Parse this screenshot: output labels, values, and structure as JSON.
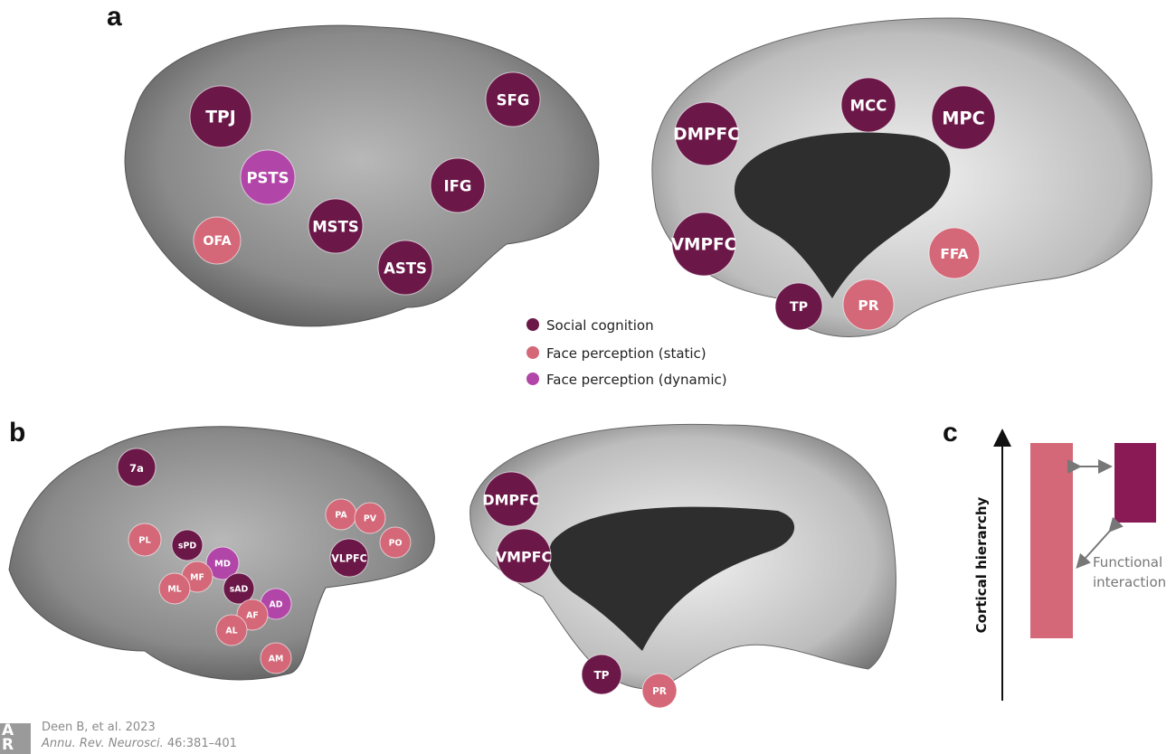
{
  "colors": {
    "social": "#6b1848",
    "static": "#d46878",
    "dynamic": "#b246a8",
    "brain": "#8c8c8c",
    "medial_wall": "#2e2e2e"
  },
  "panels": {
    "a": "a",
    "b": "b",
    "c": "c"
  },
  "legend": [
    {
      "label": "Social cognition",
      "category": "social"
    },
    {
      "label": "Face perception (static)",
      "category": "static"
    },
    {
      "label": "Face perception (dynamic)",
      "category": "dynamic"
    }
  ],
  "regions": {
    "a_lateral": [
      {
        "label": "TPJ",
        "category": "social"
      },
      {
        "label": "PSTS",
        "category": "dynamic"
      },
      {
        "label": "OFA",
        "category": "static"
      },
      {
        "label": "MSTS",
        "category": "social"
      },
      {
        "label": "ASTS",
        "category": "social"
      },
      {
        "label": "IFG",
        "category": "social"
      },
      {
        "label": "SFG",
        "category": "social"
      }
    ],
    "a_medial": [
      {
        "label": "DMPFC",
        "category": "social"
      },
      {
        "label": "MCC",
        "category": "social"
      },
      {
        "label": "MPC",
        "category": "social"
      },
      {
        "label": "VMPFC",
        "category": "social"
      },
      {
        "label": "FFA",
        "category": "static"
      },
      {
        "label": "TP",
        "category": "social"
      },
      {
        "label": "PR",
        "category": "static"
      }
    ],
    "b_lateral": [
      {
        "label": "7a",
        "category": "social"
      },
      {
        "label": "PL",
        "category": "static"
      },
      {
        "label": "sPD",
        "category": "social"
      },
      {
        "label": "MD",
        "category": "dynamic"
      },
      {
        "label": "MF",
        "category": "static"
      },
      {
        "label": "ML",
        "category": "static"
      },
      {
        "label": "sAD",
        "category": "social"
      },
      {
        "label": "AD",
        "category": "dynamic"
      },
      {
        "label": "AF",
        "category": "static"
      },
      {
        "label": "AL",
        "category": "static"
      },
      {
        "label": "AM",
        "category": "static"
      },
      {
        "label": "PA",
        "category": "static"
      },
      {
        "label": "PV",
        "category": "static"
      },
      {
        "label": "PO",
        "category": "static"
      },
      {
        "label": "VLPFC",
        "category": "social"
      }
    ],
    "b_medial": [
      {
        "label": "DMPFC",
        "category": "social"
      },
      {
        "label": "VMPFC",
        "category": "social"
      },
      {
        "label": "TP",
        "category": "social"
      },
      {
        "label": "PR",
        "category": "static"
      }
    ]
  },
  "panel_c": {
    "axis_label": "Cortical hierarchy",
    "interaction_label_line1": "Functional",
    "interaction_label_line2": "interaction"
  },
  "citation": {
    "line1": "Deen B, et al. 2023",
    "journal": "Annu. Rev. Neurosci.",
    "volume": " 46:381–401",
    "logo": "AR"
  }
}
